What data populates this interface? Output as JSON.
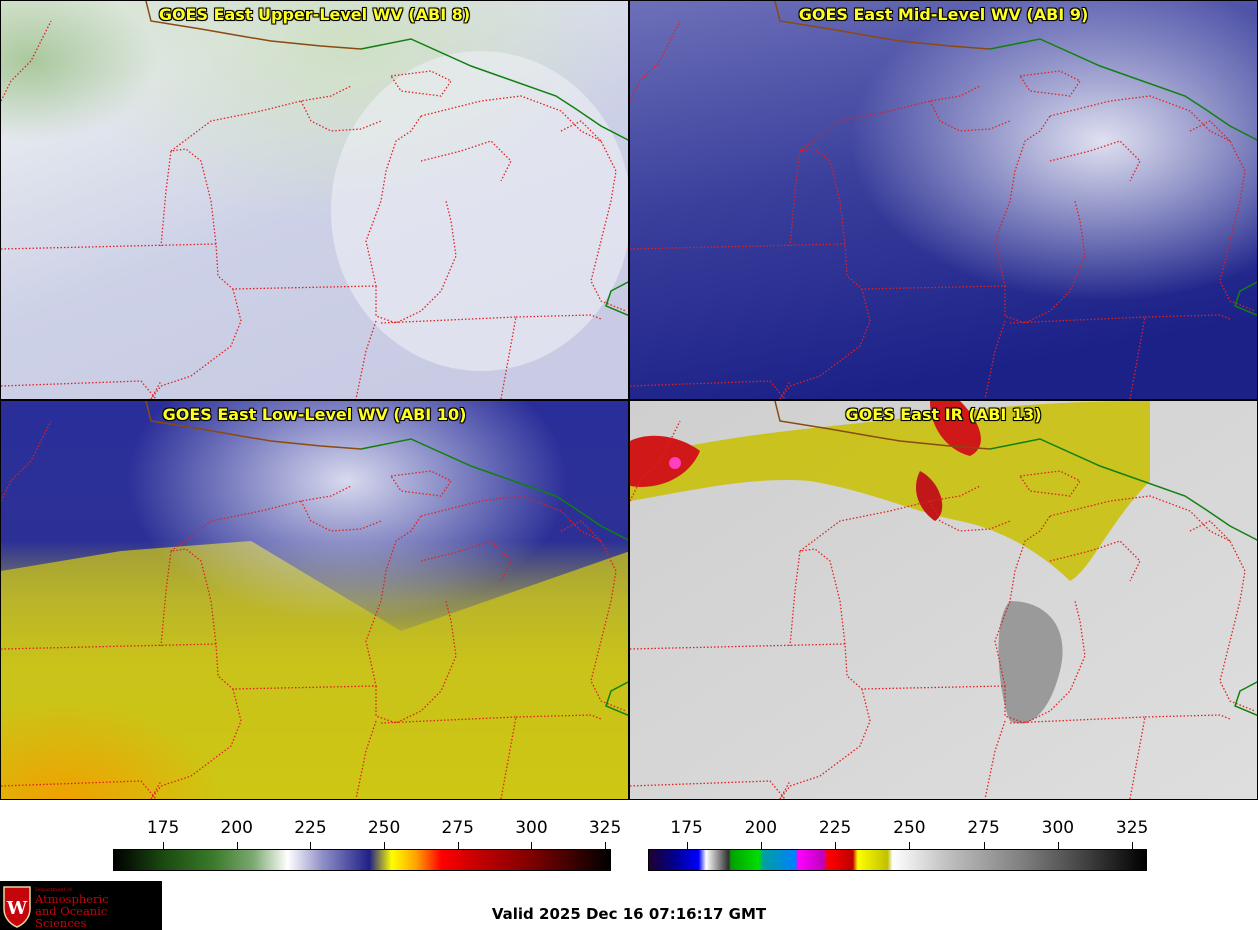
{
  "panels": [
    {
      "title": "GOES East Upper-Level WV (ABI 8)"
    },
    {
      "title": "GOES East Mid-Level WV (ABI 9)"
    },
    {
      "title": "GOES East Low-Level WV (ABI 10)"
    },
    {
      "title": "GOES East IR (ABI 13)"
    }
  ],
  "colorbars": {
    "wv": {
      "ticks": [
        "175",
        "200",
        "225",
        "250",
        "275",
        "300",
        "325"
      ],
      "range": [
        158,
        327
      ]
    },
    "ir": {
      "ticks": [
        "175",
        "200",
        "225",
        "250",
        "275",
        "300",
        "325"
      ],
      "range": [
        162,
        330
      ]
    }
  },
  "colors": {
    "state_borders": "#e02020",
    "international_border": "#108010",
    "canada_border": "#8a4a10"
  },
  "logo": {
    "small_text": "Department of",
    "line1": "Atmospheric",
    "line2": "and Oceanic Sciences",
    "icon": "uw-crest-icon"
  },
  "valid_text": "Valid 2025 Dec 16 07:16:17 GMT"
}
